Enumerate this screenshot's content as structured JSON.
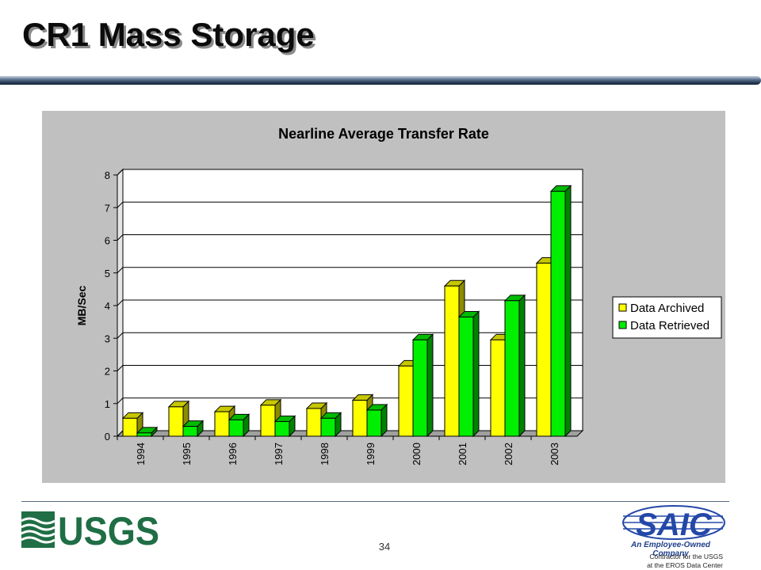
{
  "slide": {
    "title": "CR1 Mass Storage",
    "page_number": "34",
    "usgs_logo_text": "USGS",
    "saic_logo_text": "SAIC",
    "saic_tagline": "An Employee-Owned Company",
    "contractor_line1": "Contractor for the USGS",
    "contractor_line2": "at the EROS Data Center"
  },
  "colors": {
    "archived": "#ffff00",
    "retrieved": "#00ee00",
    "panel": "#c0c0c0",
    "plot_bg": "#ffffff",
    "usgs_green": "#1f6e45",
    "saic_blue": "#2448a8"
  },
  "chart_data": {
    "type": "bar",
    "title": "Nearline Average Transfer Rate",
    "xlabel": "",
    "ylabel": "MB/Sec",
    "ylim": [
      0,
      8
    ],
    "yticks": [
      0,
      1,
      2,
      3,
      4,
      5,
      6,
      7,
      8
    ],
    "grid": true,
    "three_d": true,
    "legend_position": "right",
    "categories": [
      "1994",
      "1995",
      "1996",
      "1997",
      "1998",
      "1999",
      "2000",
      "2001",
      "2002",
      "2003"
    ],
    "series": [
      {
        "name": "Data Archived",
        "color": "#ffff00",
        "values": [
          0.55,
          0.9,
          0.75,
          0.95,
          0.85,
          1.1,
          2.15,
          4.6,
          2.95,
          5.3
        ]
      },
      {
        "name": "Data Retrieved",
        "color": "#00ee00",
        "values": [
          0.1,
          0.3,
          0.5,
          0.45,
          0.55,
          0.8,
          2.95,
          3.65,
          4.15,
          7.5
        ]
      }
    ]
  }
}
